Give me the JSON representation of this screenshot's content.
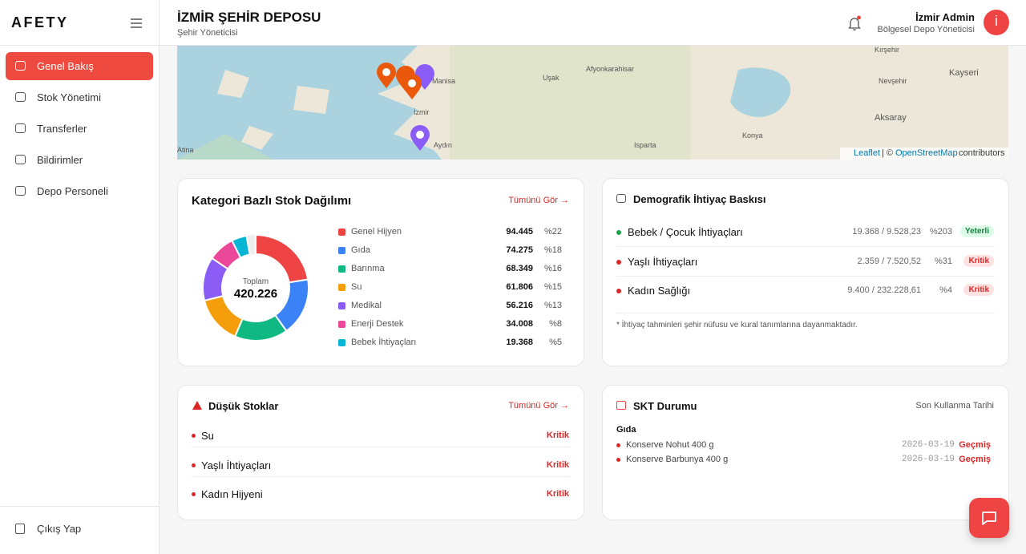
{
  "sidebar": {
    "brand": "AFETY",
    "menu": [
      "Genel Bakış",
      "Stok Yönetimi",
      "Transferler",
      "Bildirimler",
      "Depo Personeli"
    ],
    "logout": "Çıkış Yap"
  },
  "header": {
    "title": "İZMİR ŞEHİR DEPOSU",
    "subtitle": "Şehir Yöneticisi",
    "user_name": "İzmir Admin",
    "user_role": "Bölgesel Depo Yöneticisi",
    "avatar": "İ"
  },
  "map": {
    "labels": [
      "Manisa",
      "Uşak",
      "Afyonkarahisar",
      "İzmir",
      "Aydın",
      "Isparta",
      "Konya",
      "Aksaray",
      "Kayseri",
      "Nevşehir",
      "Kırşehir",
      "Atina"
    ],
    "attribution": {
      "leaflet": "Leaflet",
      "separator": "| ©",
      "osm": "OpenStreetMap",
      "suffix": "contributors"
    }
  },
  "category_card": {
    "title": "Kategori Bazlı Stok Dağılımı",
    "link": "Tümünü Gör →",
    "total_label": "Toplam",
    "total": {
      "value": 420226,
      "label": "420.226"
    },
    "items": [
      {
        "name": "Genel Hijyen",
        "color": "#ef4444",
        "value": {
          "value": 94445,
          "label": "94.445"
        },
        "share": {
          "value": 22,
          "label": "%22"
        }
      },
      {
        "name": "Gıda",
        "color": "#3b82f6",
        "value": {
          "value": 74275,
          "label": "74.275"
        },
        "share": {
          "value": 18,
          "label": "%18"
        }
      },
      {
        "name": "Barınma",
        "color": "#10b981",
        "value": {
          "value": 68349,
          "label": "68.349"
        },
        "share": {
          "value": 16,
          "label": "%16"
        }
      },
      {
        "name": "Su",
        "color": "#f59e0b",
        "value": {
          "value": 61806,
          "label": "61.806"
        },
        "share": {
          "value": 15,
          "label": "%15"
        }
      },
      {
        "name": "Medikal",
        "color": "#8b5cf6",
        "value": {
          "value": 56216,
          "label": "56.216"
        },
        "share": {
          "value": 13,
          "label": "%13"
        }
      },
      {
        "name": "Enerji Destek",
        "color": "#ec4899",
        "value": {
          "value": 34008,
          "label": "34.008"
        },
        "share": {
          "value": 8,
          "label": "%8"
        }
      },
      {
        "name": "Bebek İhtiyaçları",
        "color": "#06b6d4",
        "value": {
          "value": 19368,
          "label": "19.368"
        },
        "share": {
          "value": 5,
          "label": "%5"
        }
      }
    ]
  },
  "demographic_card": {
    "title": "Demografik İhtiyaç Baskısı",
    "items": [
      {
        "name": "Bebek / Çocuk İhtiyaçları",
        "ratio": "19.368 / 9.528,23",
        "percent": "%203",
        "status": "Yeterli"
      },
      {
        "name": "Yaşlı İhtiyaçları",
        "ratio": "2.359 / 7.520,52",
        "percent": "%31",
        "status": "Kritik"
      },
      {
        "name": "Kadın Sağlığı",
        "ratio": "9.400 / 232.228,61",
        "percent": "%4",
        "status": "Kritik"
      }
    ],
    "note": "* İhtiyaç tahminleri şehir nüfusu ve kural tanımlarına dayanmaktadır."
  },
  "low_stock_card": {
    "title": "Düşük Stoklar",
    "link": "Tümünü Gör →",
    "items": [
      {
        "name": "Su",
        "status": "Kritik"
      },
      {
        "name": "Yaşlı İhtiyaçları",
        "status": "Kritik"
      },
      {
        "name": "Kadın Hijyeni",
        "status": "Kritik"
      }
    ]
  },
  "skt_card": {
    "title": "SKT Durumu",
    "subtitle": "Son Kullanma Tarihi",
    "group": "Gıda",
    "items": [
      {
        "name": "Konserve Nohut 400 g",
        "date": "2026-03-19",
        "status": "Geçmiş"
      },
      {
        "name": "Konserve Barbunya 400 g",
        "date": "2026-03-19",
        "status": "Geçmiş"
      }
    ]
  }
}
